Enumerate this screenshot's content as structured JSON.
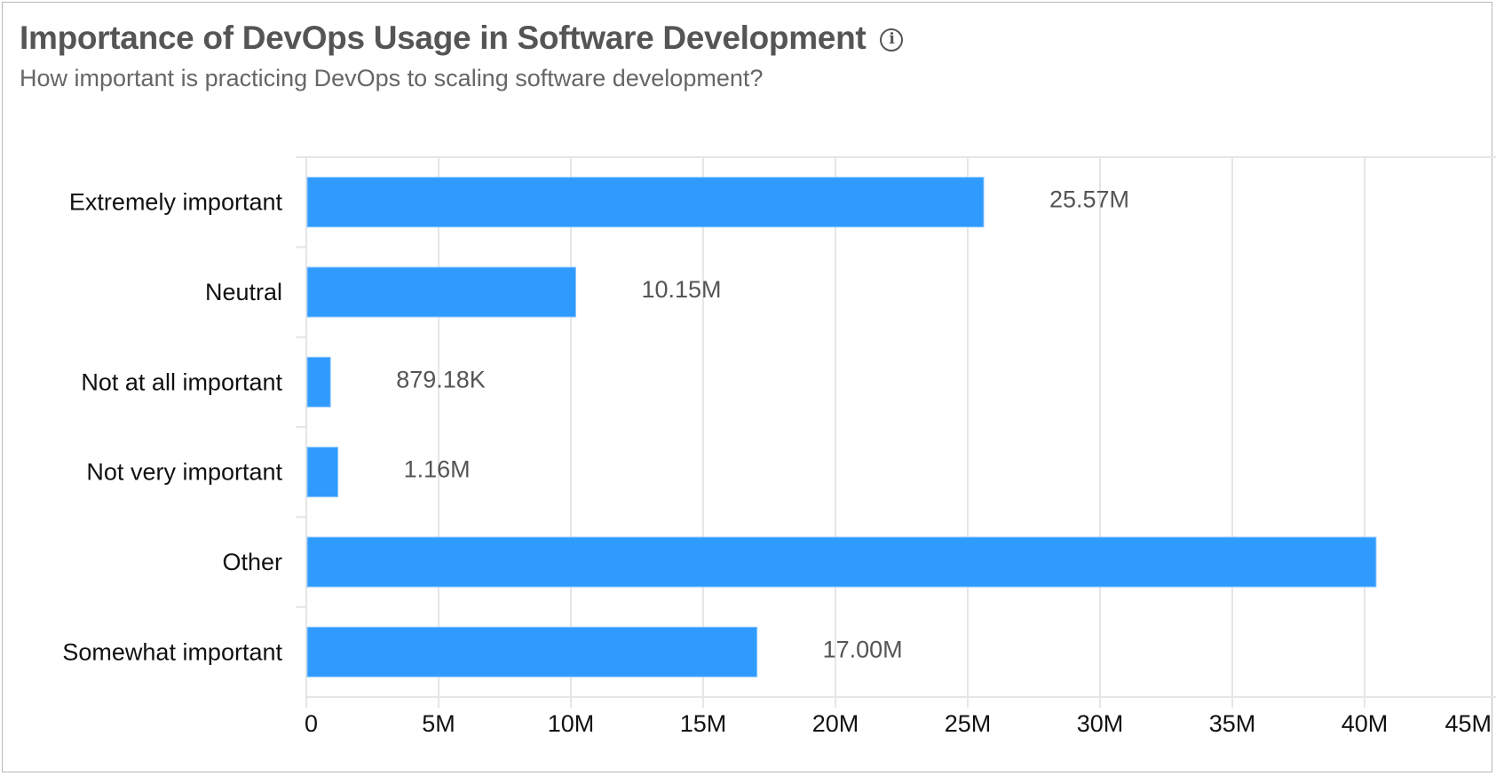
{
  "header": {
    "title": "Importance of DevOps Usage in Software Development",
    "subtitle": "How important is practicing DevOps to scaling software development?",
    "info_icon": "info-circle-icon"
  },
  "chart_data": {
    "type": "bar",
    "orientation": "horizontal",
    "title": "Importance of DevOps Usage in Software Development",
    "subtitle": "How important is practicing DevOps to scaling software development?",
    "categories": [
      "Extremely important",
      "Neutral",
      "Not at all important",
      "Not very important",
      "Other",
      "Somewhat important"
    ],
    "values": [
      25570000,
      10150000,
      879180,
      1160000,
      40400000,
      17000000
    ],
    "data_labels": [
      "25.57M",
      "10.15M",
      "879.18K",
      "1.16M",
      "",
      "17.00M"
    ],
    "xlim": [
      0,
      45000000
    ],
    "x_ticks": [
      "0",
      "5M",
      "10M",
      "15M",
      "20M",
      "25M",
      "30M",
      "35M",
      "40M",
      "45M"
    ],
    "grid": true,
    "legend": "none",
    "bar_color": "#2f9bff",
    "grid_color": "#e6e6e6"
  }
}
